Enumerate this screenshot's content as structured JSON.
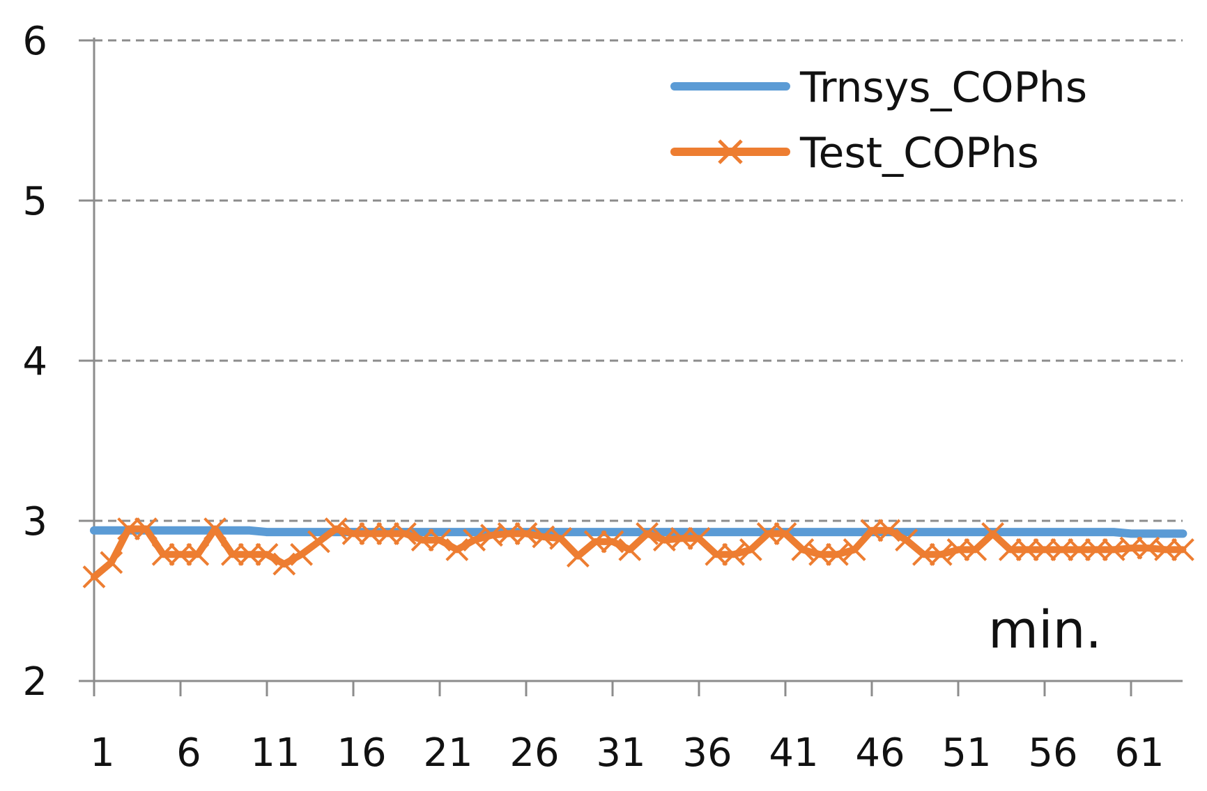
{
  "chart_data": {
    "type": "line",
    "title": "",
    "xlabel": "min.",
    "ylabel": "",
    "x": [
      1,
      2,
      3,
      4,
      5,
      6,
      7,
      8,
      9,
      10,
      11,
      12,
      13,
      14,
      15,
      16,
      17,
      18,
      19,
      20,
      21,
      22,
      23,
      24,
      25,
      26,
      27,
      28,
      29,
      30,
      31,
      32,
      33,
      34,
      35,
      36,
      37,
      38,
      39,
      40,
      41,
      42,
      43,
      44,
      45,
      46,
      47,
      48,
      49,
      50,
      51,
      52,
      53,
      54,
      55,
      56,
      57,
      58,
      59,
      60,
      61,
      62,
      63,
      64
    ],
    "x_tick_labels": [
      "1",
      "6",
      "11",
      "16",
      "21",
      "26",
      "31",
      "36",
      "41",
      "46",
      "51",
      "56",
      "61"
    ],
    "y_tick_labels": [
      "2",
      "3",
      "4",
      "5",
      "6"
    ],
    "ylim": [
      2,
      6
    ],
    "grid": "horizontal dashed",
    "legend_position": "top-right",
    "series": [
      {
        "name": "Trnsys_COPhs",
        "color": "#5b9bd5",
        "marker": "none",
        "values": [
          2.94,
          2.94,
          2.94,
          2.94,
          2.94,
          2.94,
          2.94,
          2.94,
          2.94,
          2.94,
          2.93,
          2.93,
          2.93,
          2.93,
          2.93,
          2.93,
          2.93,
          2.93,
          2.93,
          2.93,
          2.93,
          2.93,
          2.93,
          2.93,
          2.93,
          2.93,
          2.93,
          2.93,
          2.93,
          2.93,
          2.93,
          2.93,
          2.93,
          2.93,
          2.93,
          2.93,
          2.93,
          2.93,
          2.93,
          2.93,
          2.93,
          2.93,
          2.93,
          2.93,
          2.93,
          2.93,
          2.93,
          2.93,
          2.93,
          2.93,
          2.93,
          2.93,
          2.93,
          2.93,
          2.93,
          2.93,
          2.93,
          2.93,
          2.93,
          2.93,
          2.92,
          2.92,
          2.92,
          2.92
        ]
      },
      {
        "name": "Test_COPhs",
        "color": "#ed7d31",
        "marker": "x",
        "values": [
          2.65,
          2.74,
          2.95,
          2.95,
          2.79,
          2.79,
          2.79,
          2.95,
          2.79,
          2.79,
          2.79,
          2.73,
          2.79,
          2.87,
          2.95,
          2.92,
          2.92,
          2.92,
          2.92,
          2.88,
          2.88,
          2.82,
          2.88,
          2.91,
          2.92,
          2.92,
          2.9,
          2.89,
          2.78,
          2.87,
          2.87,
          2.82,
          2.92,
          2.88,
          2.89,
          2.89,
          2.79,
          2.79,
          2.82,
          2.92,
          2.92,
          2.82,
          2.79,
          2.79,
          2.82,
          2.94,
          2.94,
          2.88,
          2.79,
          2.79,
          2.82,
          2.82,
          2.92,
          2.82,
          2.82,
          2.82,
          2.82,
          2.82,
          2.82,
          2.82,
          2.83,
          2.83,
          2.82,
          2.82
        ]
      }
    ]
  }
}
